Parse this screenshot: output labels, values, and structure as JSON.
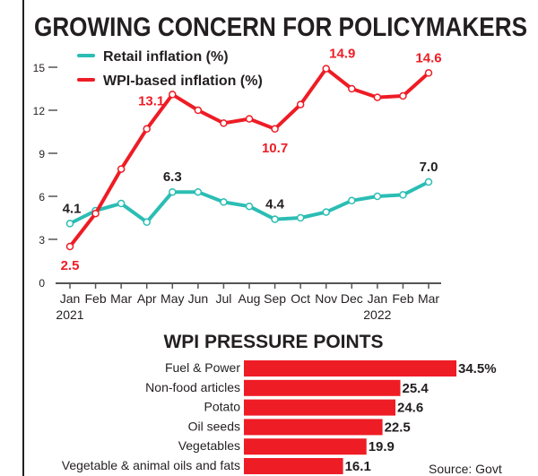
{
  "title": "GROWING CONCERN FOR POLICYMAKERS",
  "colors": {
    "retail": "#2bbdb4",
    "wpi": "#ee1c25",
    "bar": "#ee1c25",
    "text": "#231f20"
  },
  "chart_data": [
    {
      "type": "line",
      "x": [
        "Jan",
        "Feb",
        "Mar",
        "Apr",
        "May",
        "Jun",
        "Jul",
        "Aug",
        "Sep",
        "Oct",
        "Nov",
        "Dec",
        "Jan",
        "Feb",
        "Mar"
      ],
      "year_labels": [
        {
          "index": 0,
          "label": "2021"
        },
        {
          "index": 12,
          "label": "2022"
        }
      ],
      "ylim": [
        0,
        16
      ],
      "yticks": [
        0,
        3,
        6,
        9,
        12,
        15
      ],
      "legend": "top-left",
      "series": [
        {
          "name": "Retail inflation (%)",
          "color": "#2bbdb4",
          "values": [
            4.1,
            5.0,
            5.5,
            4.2,
            6.3,
            6.3,
            5.6,
            5.3,
            4.4,
            4.5,
            4.9,
            5.7,
            6.0,
            6.1,
            7.0
          ],
          "labels": [
            {
              "index": 0,
              "text": "4.1"
            },
            {
              "index": 4,
              "text": "6.3"
            },
            {
              "index": 8,
              "text": "4.4"
            },
            {
              "index": 14,
              "text": "7.0"
            }
          ]
        },
        {
          "name": "WPI-based inflation (%)",
          "color": "#ee1c25",
          "values": [
            2.5,
            4.8,
            7.9,
            10.7,
            13.1,
            12.0,
            11.1,
            11.4,
            10.7,
            12.4,
            14.9,
            13.5,
            12.9,
            13.0,
            14.6
          ],
          "labels": [
            {
              "index": 0,
              "text": "2.5"
            },
            {
              "index": 4,
              "text": "13.1"
            },
            {
              "index": 8,
              "text": "10.7"
            },
            {
              "index": 10,
              "text": "14.9"
            },
            {
              "index": 14,
              "text": "14.6"
            }
          ]
        }
      ]
    },
    {
      "type": "bar",
      "title": "WPI PRESSURE POINTS",
      "orientation": "horizontal",
      "categories": [
        "Fuel & Power",
        "Non-food articles",
        "Potato",
        "Oil seeds",
        "Vegetables",
        "Vegetable & animal oils and fats"
      ],
      "values": [
        34.5,
        25.4,
        24.6,
        22.5,
        19.9,
        16.1
      ],
      "value_labels": [
        "34.5%",
        "25.4",
        "24.6",
        "22.5",
        "19.9",
        "16.1"
      ]
    }
  ],
  "source": "Source: Govt"
}
